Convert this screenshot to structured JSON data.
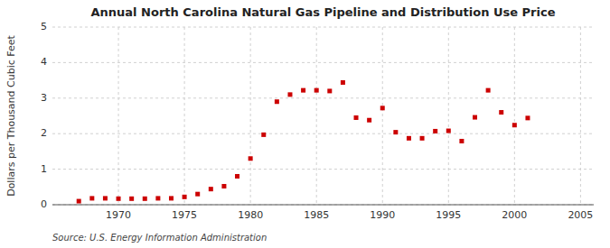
{
  "chart_data": {
    "type": "scatter",
    "title": "Annual North Carolina Natural Gas Pipeline and Distribution Use Price",
    "y_label": "Dollars per Thousand Cubic Feet",
    "source": "Source: U.S. Energy Information Administration",
    "color": "#cc0000",
    "marker": "square",
    "grid": true,
    "xlim": [
      1965,
      2006
    ],
    "ylim": [
      0,
      5
    ],
    "xticks": [
      1970,
      1975,
      1980,
      1985,
      1990,
      1995,
      2000,
      2005
    ],
    "yticks": [
      0,
      1,
      2,
      3,
      4,
      5
    ],
    "x": [
      1967,
      1968,
      1969,
      1970,
      1971,
      1972,
      1973,
      1974,
      1975,
      1976,
      1977,
      1978,
      1979,
      1980,
      1981,
      1982,
      1983,
      1984,
      1985,
      1986,
      1987,
      1988,
      1989,
      1990,
      1991,
      1992,
      1993,
      1994,
      1995,
      1996,
      1997,
      1998,
      1999,
      2000,
      2001
    ],
    "values": [
      0.1,
      0.18,
      0.18,
      0.17,
      0.17,
      0.17,
      0.18,
      0.18,
      0.22,
      0.3,
      0.44,
      0.52,
      0.8,
      1.3,
      1.97,
      2.9,
      3.1,
      3.22,
      3.22,
      3.2,
      3.44,
      2.45,
      2.38,
      2.72,
      2.04,
      1.87,
      1.87,
      2.07,
      2.08,
      1.79,
      2.46,
      3.22,
      2.6,
      2.24,
      2.44
    ]
  }
}
